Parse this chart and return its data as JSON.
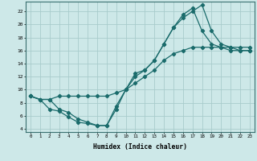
{
  "bg_color": "#cde8e8",
  "grid_color": "#a8cccc",
  "line_color": "#1a6b6b",
  "xlabel": "Humidex (Indice chaleur)",
  "xlim": [
    -0.5,
    23.5
  ],
  "ylim": [
    3.5,
    23.5
  ],
  "yticks": [
    4,
    6,
    8,
    10,
    12,
    14,
    16,
    18,
    20,
    22
  ],
  "xticks": [
    0,
    1,
    2,
    3,
    4,
    5,
    6,
    7,
    8,
    9,
    10,
    11,
    12,
    13,
    14,
    15,
    16,
    17,
    18,
    19,
    20,
    21,
    22,
    23
  ],
  "line1_x": [
    0,
    1,
    2,
    3,
    4,
    5,
    6,
    7,
    8,
    9,
    10,
    11,
    12,
    13,
    14,
    15,
    16,
    17,
    18,
    19,
    20,
    21,
    22,
    23
  ],
  "line1_y": [
    9,
    8.5,
    7.0,
    6.7,
    5.8,
    5.0,
    4.8,
    4.5,
    4.5,
    7.0,
    10.0,
    12.0,
    13.0,
    14.5,
    17.0,
    19.5,
    21.5,
    22.5,
    19.0,
    17.0,
    16.5,
    16.0,
    16.0,
    16.0
  ],
  "line2_x": [
    0,
    1,
    2,
    3,
    4,
    5,
    6,
    7,
    8,
    9,
    10,
    11,
    12,
    13,
    14,
    15,
    16,
    17,
    18,
    19,
    20,
    21,
    22,
    23
  ],
  "line2_y": [
    9,
    8.5,
    8.5,
    9.0,
    9.0,
    9.0,
    9.0,
    9.0,
    9.0,
    9.5,
    10.0,
    11.0,
    12.0,
    13.0,
    14.5,
    15.5,
    16.0,
    16.5,
    16.5,
    16.5,
    16.5,
    16.5,
    16.5,
    16.5
  ],
  "line3_x": [
    0,
    1,
    2,
    3,
    4,
    5,
    6,
    7,
    8,
    9,
    10,
    11,
    12,
    13,
    14,
    15,
    16,
    17,
    18,
    19,
    20,
    21,
    22,
    23
  ],
  "line3_y": [
    9,
    8.5,
    8.5,
    7.0,
    6.5,
    5.5,
    5.0,
    4.5,
    4.5,
    7.5,
    10.0,
    12.5,
    13.0,
    14.5,
    17.0,
    19.5,
    21.0,
    22.0,
    23.0,
    19.0,
    17.0,
    16.5,
    16.0,
    16.0
  ]
}
